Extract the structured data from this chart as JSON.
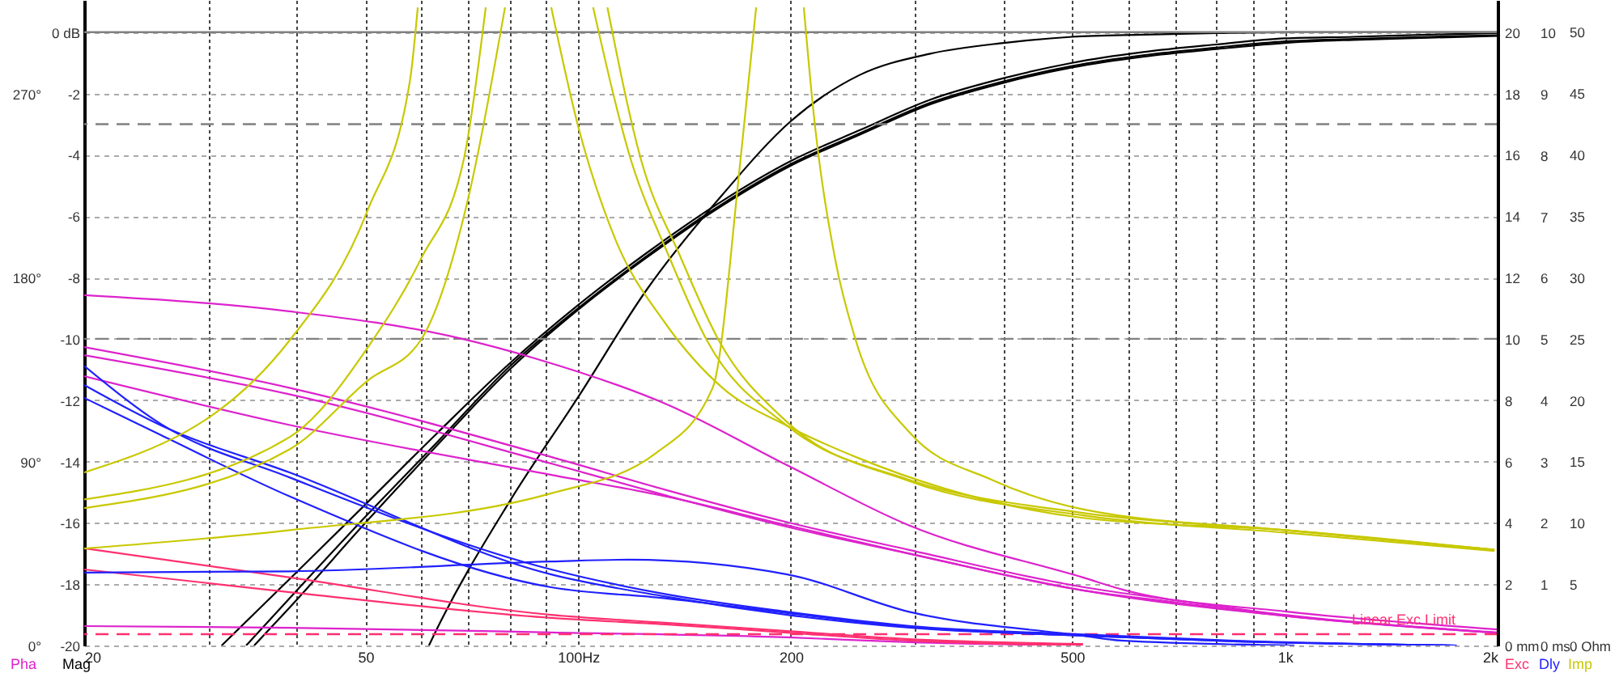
{
  "chart_data": [
    {
      "type": "line",
      "log": "x",
      "grid": true,
      "xlim": [
        20,
        2000
      ],
      "xticks": [
        20,
        {
          "value": 30,
          "label": null
        },
        {
          "value": 40,
          "label": null
        },
        50,
        {
          "value": 60,
          "label": null
        },
        {
          "value": 70,
          "label": null
        },
        {
          "value": 80,
          "label": null
        },
        {
          "value": 90,
          "label": null
        },
        {
          "value": 100,
          "label": "100Hz"
        },
        200,
        {
          "value": 300,
          "label": null
        },
        {
          "value": 400,
          "label": null
        },
        500,
        {
          "value": 600,
          "label": null
        },
        {
          "value": 700,
          "label": null
        },
        {
          "value": 800,
          "label": null
        },
        {
          "value": 900,
          "label": null
        },
        {
          "value": 1000,
          "label": "1k"
        },
        {
          "value": 2000,
          "label": "2k"
        }
      ],
      "ylabel": "Mag",
      "ylim": [
        -20,
        1.05
      ],
      "yticks": [
        -20,
        -18,
        -16,
        -14,
        -12,
        -10,
        -8,
        -6,
        -4,
        -2,
        {
          "value": 0,
          "label": "0 dB"
        }
      ],
      "y2label": "Pha",
      "y2lim": [
        0,
        316
      ],
      "y2ticks": [
        {
          "value": 0,
          "label": "0°"
        },
        {
          "value": 90,
          "label": "90°"
        },
        {
          "value": 180,
          "label": "180°"
        },
        {
          "value": 270,
          "label": "270°"
        }
      ],
      "y3label": "Exc",
      "y3lim": [
        0,
        21.05
      ],
      "y3ticks": [
        {
          "value": 0,
          "label": "0 mm"
        },
        2,
        4,
        6,
        8,
        10,
        12,
        14,
        16,
        18,
        20
      ],
      "series": [
        {
          "color": "#000000",
          "x": [
            61.5,
            63,
            80,
            100,
            125,
            160,
            200,
            250,
            315,
            400,
            500,
            630,
            800,
            1000,
            2000
          ],
          "values": [
            -20,
            -19.5,
            -15.3,
            -11.9,
            -8.4,
            -5.3,
            -2.9,
            -1.4,
            -0.7,
            -0.35,
            -0.15,
            -0.08,
            -0.03,
            0,
            0
          ]
        },
        {
          "color": "#000000",
          "x": [
            31.3,
            40,
            50,
            63,
            80,
            100,
            125,
            160,
            200,
            250,
            315,
            400,
            500,
            630,
            800,
            1000,
            1250,
            1600,
            2000
          ],
          "values": [
            -20,
            -17.6,
            -15.4,
            -13.1,
            -10.8,
            -8.9,
            -7.2,
            -5.5,
            -4.2,
            -3.2,
            -2.2,
            -1.5,
            -1.0,
            -0.65,
            -0.4,
            -0.2,
            -0.15,
            -0.08,
            -0.03
          ]
        },
        {
          "color": "#000000",
          "x": [
            33.9,
            40,
            50,
            63,
            80,
            100,
            125,
            160,
            200,
            250,
            315,
            400,
            500,
            630,
            800,
            1000,
            1250,
            1600,
            2000
          ],
          "values": [
            -20,
            -18.2,
            -15.8,
            -13.4,
            -10.9,
            -9.0,
            -7.3,
            -5.6,
            -4.3,
            -3.3,
            -2.3,
            -1.6,
            -1.1,
            -0.75,
            -0.5,
            -0.3,
            -0.22,
            -0.15,
            -0.1
          ]
        },
        {
          "color": "#000000",
          "x": [
            34.8,
            40,
            50,
            63,
            80,
            100,
            125,
            160,
            200,
            250,
            315,
            400,
            500,
            630,
            800,
            1000,
            1250,
            1600,
            2000
          ],
          "values": [
            -20,
            -18.5,
            -16.0,
            -13.5,
            -11.0,
            -9.05,
            -7.35,
            -5.65,
            -4.35,
            -3.35,
            -2.35,
            -1.65,
            -1.15,
            -0.8,
            -0.55,
            -0.35,
            -0.25,
            -0.18,
            -0.12
          ]
        },
        {
          "color": "#dd22cc",
          "axis": "y2",
          "x": [
            20,
            39,
            67,
            87,
            133,
            198,
            294,
            518,
            595,
            1000,
            2000
          ],
          "values": [
            171.5,
            163.6,
            150.9,
            140.5,
            118.3,
            88.1,
            58.8,
            33.3,
            27,
            16.7,
            7.9
          ]
        },
        {
          "color": "#dd22cc",
          "axis": "y2",
          "x": [
            20,
            39,
            92,
            133,
            198,
            294,
            518,
            705,
            1000,
            2000
          ],
          "values": [
            146.1,
            126.2,
            92.1,
            76.2,
            60.3,
            46.8,
            28.6,
            22,
            15,
            6.4
          ]
        },
        {
          "color": "#dd22cc",
          "axis": "y2",
          "x": [
            20,
            39,
            92,
            133,
            198,
            294,
            518,
            705,
            1000,
            2000
          ],
          "values": [
            142.1,
            123,
            88.9,
            73.5,
            58,
            45,
            27,
            21,
            14.5,
            6.2
          ]
        },
        {
          "color": "#dd22cc",
          "axis": "y2",
          "x": [
            20,
            39,
            92,
            133,
            198,
            294,
            518,
            1000,
            2000
          ],
          "values": [
            131.8,
            108,
            83.4,
            73,
            58.8,
            45,
            27,
            14.5,
            6.2
          ]
        },
        {
          "color": "#dd22cc",
          "axis": "y2",
          "x": [
            20,
            39.1,
            91.6,
            197.6,
            294,
            518
          ],
          "values": [
            9.5,
            8.7,
            6.4,
            4.0,
            1.6,
            0
          ]
        },
        {
          "color": "#ff3070",
          "axis": "y3",
          "x": [
            20,
            39.1,
            91.6,
            132.7,
            197.6,
            294,
            518
          ],
          "values": [
            3.17,
            2.22,
            1.0,
            0.74,
            0.47,
            0.21,
            0.05
          ]
        },
        {
          "color": "#ff3070",
          "axis": "y3",
          "x": [
            20,
            39.1,
            91.6,
            132.7,
            197.6,
            294,
            518
          ],
          "values": [
            2.48,
            1.74,
            0.9,
            0.69,
            0.42,
            0.16,
            0
          ]
        }
      ],
      "ref_lines": [
        {
          "axis": "y",
          "value": 0,
          "line_style": "solid",
          "color": "#808080"
        },
        {
          "axis": "y",
          "value": -3,
          "line_style": "dashed",
          "color": "#808080"
        },
        {
          "axis": "y",
          "value": -10,
          "line_style": "dashed",
          "color": "#808080"
        },
        {
          "axis": "y3",
          "value": 0.37,
          "label": "Linear Exc Limit",
          "line_style": "dashed",
          "color": "#ff3070"
        }
      ]
    },
    {
      "type": "line",
      "log": "x",
      "tick_labels": "y",
      "xlim": [
        20,
        2000
      ],
      "ylabel": "Dly",
      "ylim": [
        0,
        10.53
      ],
      "yticks": [
        {
          "value": 0,
          "label": "0 ms"
        },
        1,
        2,
        3,
        4,
        5,
        6,
        7,
        8,
        9,
        10
      ],
      "y2label": "Imp",
      "y2lim": [
        0,
        52.6
      ],
      "y2ticks": [
        {
          "value": 0,
          "label": "0 Ohm"
        },
        5,
        10,
        15,
        20,
        25,
        30,
        35,
        40,
        45,
        50
      ],
      "series": [
        {
          "color": "#2020ff",
          "x": [
            20,
            25.7,
            39.1,
            91.6,
            132.7,
            197.6,
            294,
            518,
            836,
            1750
          ],
          "values": [
            4.56,
            3.61,
            2.74,
            1.24,
            0.84,
            0.55,
            0.32,
            0.18,
            0.08,
            0
          ]
        },
        {
          "color": "#2020ff",
          "x": [
            20,
            25.7,
            39.1,
            91.6,
            132.7,
            197.6,
            294,
            518,
            836,
            1750
          ],
          "values": [
            4.25,
            3.59,
            2.82,
            1.16,
            0.8,
            0.5,
            0.29,
            0.16,
            0.07,
            0
          ]
        },
        {
          "color": "#2020ff",
          "x": [
            20,
            25.7,
            39.1,
            91.6,
            132.7,
            197.6,
            294,
            518,
            836,
            1750
          ],
          "values": [
            4.04,
            3.43,
            2.43,
            0.95,
            0.77,
            0.53,
            0.3,
            0.16,
            0.07,
            0
          ]
        },
        {
          "color": "#2020ff",
          "x": [
            20,
            39.1,
            91.6,
            118,
            197.6,
            294,
            518,
            587,
            1032
          ],
          "values": [
            1.19,
            1.21,
            1.37,
            1.4,
            1.16,
            0.55,
            0.16,
            0.08,
            0
          ]
        },
        {
          "color": "#c8c800",
          "axis": "y2",
          "x": [
            20,
            39.1,
            50.4,
            57.8,
            59.3,
            75,
            91.6,
            99.8,
            112.7,
            132.7,
            160,
            197.6,
            248.6,
            518,
            1000,
            1980
          ],
          "values": [
            14.1,
            24.9,
            35.5,
            46.0,
            52,
            null,
            52,
            42.5,
            33.2,
            26.3,
            21.0,
            17.9,
            15.3,
            10.4,
            9.4,
            7.8
          ]
        },
        {
          "color": "#c8c800",
          "axis": "y2",
          "x": [
            20,
            39.1,
            50.4,
            59.9,
            69,
            74,
            88,
            105,
            119,
            134,
            152,
            197.6,
            294,
            518,
            1000,
            1980
          ],
          "values": [
            11.9,
            17.0,
            24.3,
            31.5,
            39.8,
            52,
            null,
            52,
            39.4,
            31.9,
            24.9,
            17.9,
            13.5,
            10.8,
            9.4,
            7.8
          ]
        },
        {
          "color": "#c8c800",
          "axis": "y2",
          "x": [
            20,
            39.1,
            50.4,
            59.9,
            69,
            78.8,
            92,
            110,
            123,
            139,
            158,
            197.6,
            294,
            518,
            1000,
            1980
          ],
          "values": [
            11.2,
            16.0,
            21.6,
            24.9,
            35.1,
            52,
            null,
            52,
            39.4,
            31.9,
            24.9,
            18.2,
            13.4,
            10.6,
            9.2,
            7.7
          ]
        },
        {
          "color": "#c8c800",
          "axis": "y2",
          "x": [
            20,
            39.1,
            91.6,
            129,
            155,
            169.6,
            178.6,
            193,
            208.6,
            215,
            231,
            247,
            294,
            385,
            518,
            1000,
            1980
          ],
          "values": [
            7.9,
            9.4,
            12.4,
            15.7,
            21.0,
            39.4,
            52,
            null,
            52,
            43.8,
            31.5,
            24.9,
            17.4,
            13.5,
            11.1,
            9.4,
            7.8
          ]
        }
      ]
    }
  ]
}
